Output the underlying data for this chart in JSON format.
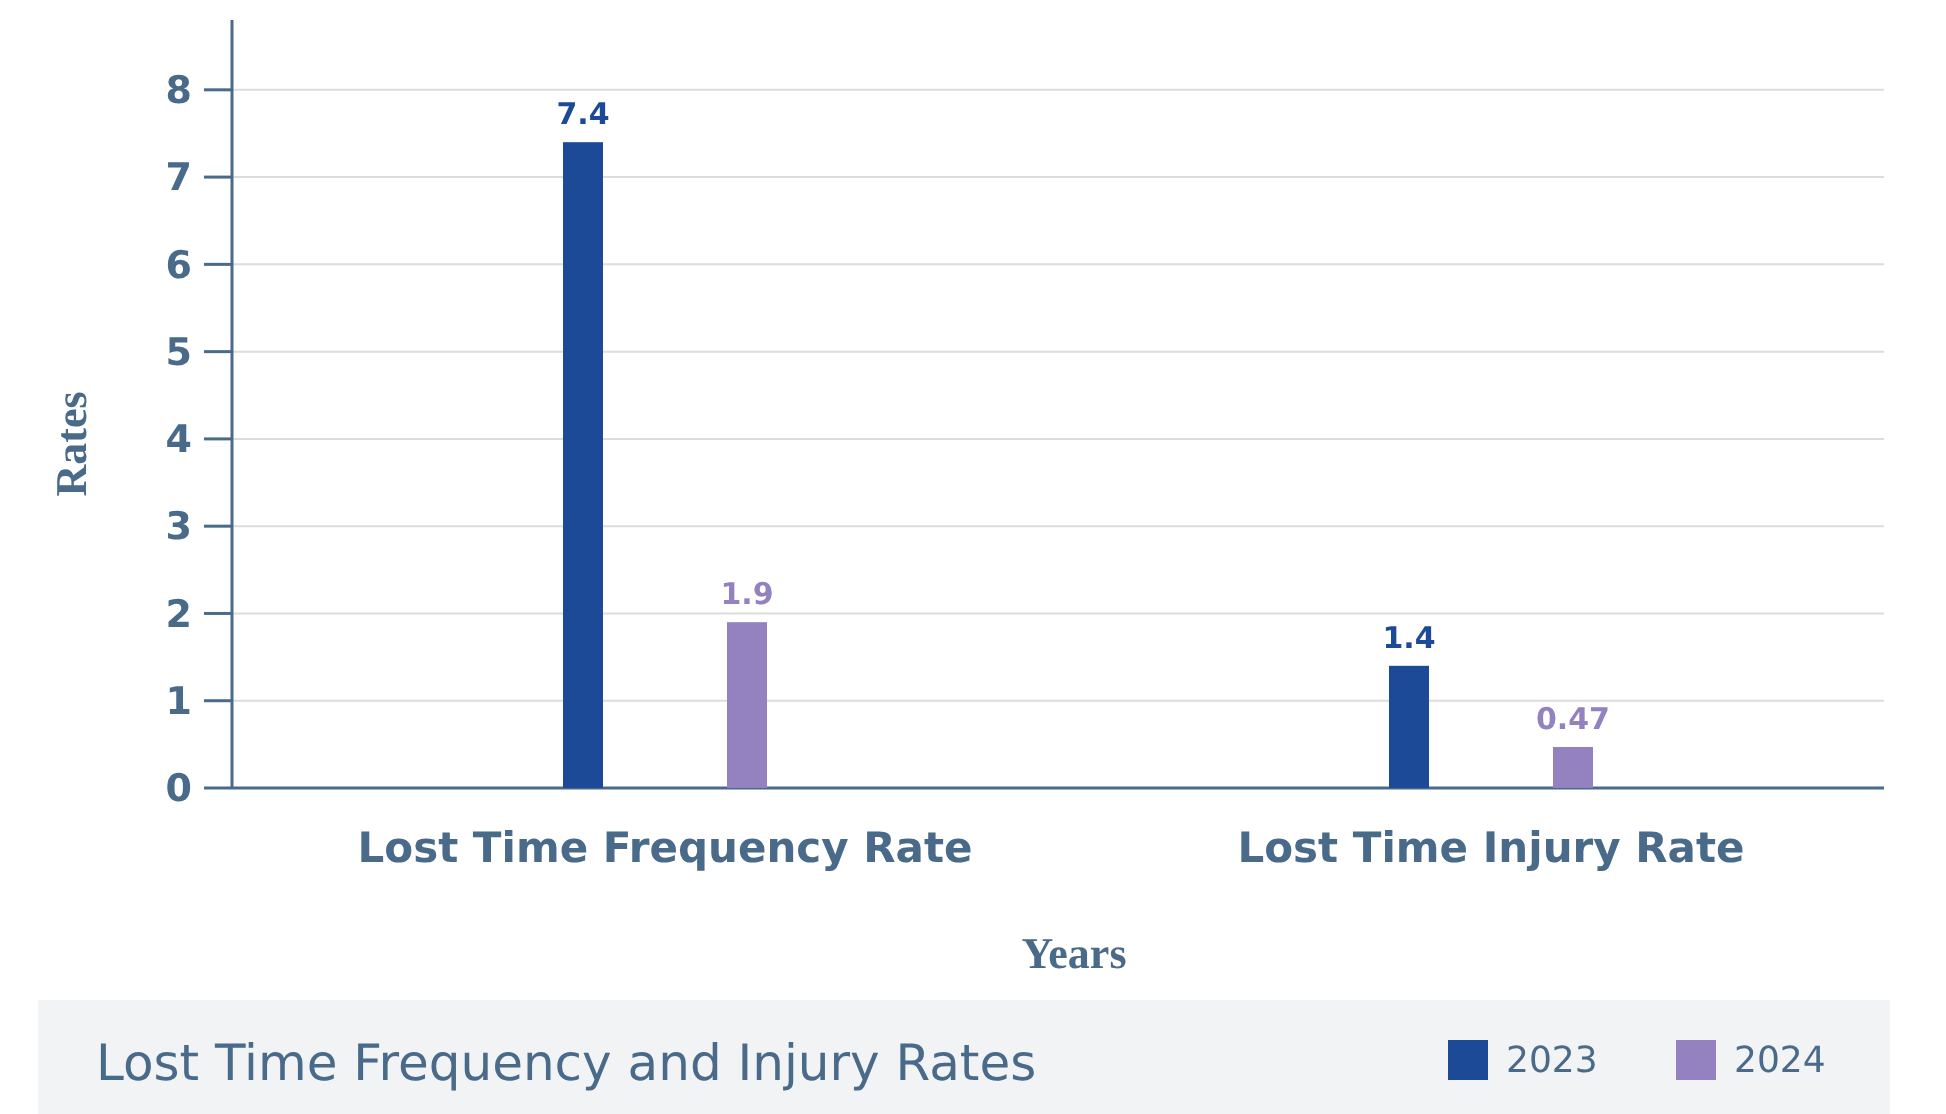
{
  "chart_data": {
    "type": "bar",
    "title": "Lost Time Frequency and Injury Rates",
    "xlabel": "Years",
    "ylabel": "Rates",
    "categories": [
      "Lost Time Frequency Rate",
      "Lost Time Injury Rate"
    ],
    "series": [
      {
        "name": "2023",
        "color": "#1c4a96",
        "values": [
          7.4,
          1.4
        ]
      },
      {
        "name": "2024",
        "color": "#9381c0",
        "values": [
          1.9,
          0.47
        ]
      }
    ],
    "ylim": [
      0,
      8.8
    ],
    "yticks": [
      0,
      1,
      2,
      3,
      4,
      5,
      6,
      7,
      8
    ],
    "grid": "y",
    "legend": "bottom",
    "data_labels": true
  }
}
